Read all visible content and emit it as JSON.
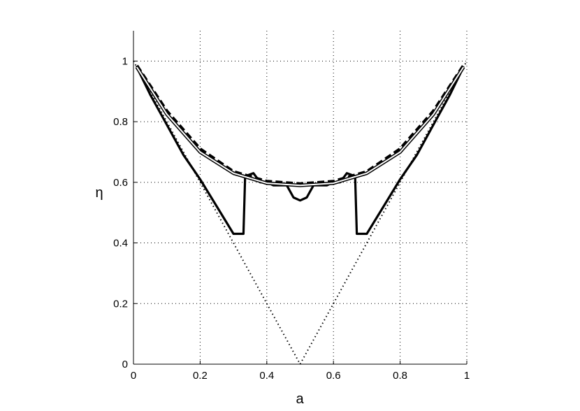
{
  "chart_data": {
    "type": "line",
    "title": "",
    "xlabel": "a",
    "ylabel": "η",
    "xlim": [
      0,
      1
    ],
    "ylim": [
      0,
      1.1
    ],
    "grid": true,
    "xticks": [
      0,
      0.2,
      0.4,
      0.6,
      0.8,
      1
    ],
    "xtick_labels": [
      "0",
      "0.2",
      "0.4",
      "0.6",
      "0.8",
      "1"
    ],
    "yticks": [
      0,
      0.2,
      0.4,
      0.6,
      0.8,
      1
    ],
    "ytick_labels": [
      "0",
      "0.2",
      "0.4",
      "0.6",
      "0.8",
      "1"
    ],
    "series": [
      {
        "style": "dotted",
        "color": "#000000",
        "x": [
          0.0,
          0.5,
          1.0
        ],
        "y": [
          1.0,
          0.0,
          1.0
        ]
      },
      {
        "style": "solid-thick",
        "color": "#000000",
        "x": [
          0.01,
          0.05,
          0.1,
          0.15,
          0.2,
          0.25,
          0.3,
          0.31,
          0.33,
          0.335,
          0.36,
          0.38,
          0.4,
          0.42,
          0.44,
          0.46,
          0.48,
          0.5,
          0.52,
          0.54,
          0.56,
          0.58,
          0.6,
          0.62,
          0.64,
          0.665,
          0.67,
          0.69,
          0.7,
          0.75,
          0.8,
          0.85,
          0.9,
          0.95,
          0.99
        ],
        "y": [
          0.98,
          0.89,
          0.79,
          0.69,
          0.61,
          0.52,
          0.43,
          0.43,
          0.43,
          0.62,
          0.63,
          0.6,
          0.6,
          0.59,
          0.59,
          0.59,
          0.55,
          0.54,
          0.55,
          0.59,
          0.59,
          0.59,
          0.6,
          0.6,
          0.63,
          0.62,
          0.43,
          0.43,
          0.43,
          0.52,
          0.61,
          0.69,
          0.79,
          0.89,
          0.98
        ]
      },
      {
        "style": "dashed-thick",
        "color": "#000000",
        "x": [
          0.01,
          0.1,
          0.2,
          0.3,
          0.4,
          0.5,
          0.6,
          0.7,
          0.8,
          0.9,
          0.99
        ],
        "y": [
          0.985,
          0.835,
          0.71,
          0.635,
          0.603,
          0.595,
          0.603,
          0.635,
          0.71,
          0.835,
          0.985
        ]
      },
      {
        "style": "white-on-black",
        "color": "#000000",
        "x": [
          0.01,
          0.1,
          0.2,
          0.3,
          0.4,
          0.5,
          0.6,
          0.7,
          0.8,
          0.9,
          0.99
        ],
        "y": [
          0.98,
          0.825,
          0.7,
          0.63,
          0.597,
          0.59,
          0.597,
          0.63,
          0.7,
          0.825,
          0.98
        ]
      }
    ]
  }
}
